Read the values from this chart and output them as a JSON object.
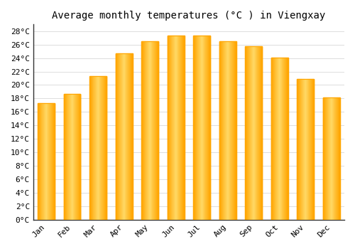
{
  "title": "Average monthly temperatures (°C ) in Viengxay",
  "months": [
    "Jan",
    "Feb",
    "Mar",
    "Apr",
    "May",
    "Jun",
    "Jul",
    "Aug",
    "Sep",
    "Oct",
    "Nov",
    "Dec"
  ],
  "temperatures": [
    17.3,
    18.7,
    21.3,
    24.7,
    26.5,
    27.3,
    27.3,
    26.5,
    25.8,
    24.1,
    20.9,
    18.2
  ],
  "bar_color_center": "#FFD966",
  "bar_color_edge": "#FFA500",
  "background_color": "#FFFFFF",
  "plot_bg_color": "#FFFFFF",
  "grid_color": "#DDDDDD",
  "spine_color": "#333333",
  "ylim": [
    0,
    29
  ],
  "yticks": [
    0,
    2,
    4,
    6,
    8,
    10,
    12,
    14,
    16,
    18,
    20,
    22,
    24,
    26,
    28
  ],
  "ytick_labels": [
    "0°C",
    "2°C",
    "4°C",
    "6°C",
    "8°C",
    "10°C",
    "12°C",
    "14°C",
    "16°C",
    "18°C",
    "20°C",
    "22°C",
    "24°C",
    "26°C",
    "28°C"
  ],
  "title_fontsize": 10,
  "tick_fontsize": 8,
  "bar_width": 0.65,
  "gradient_steps": 50
}
